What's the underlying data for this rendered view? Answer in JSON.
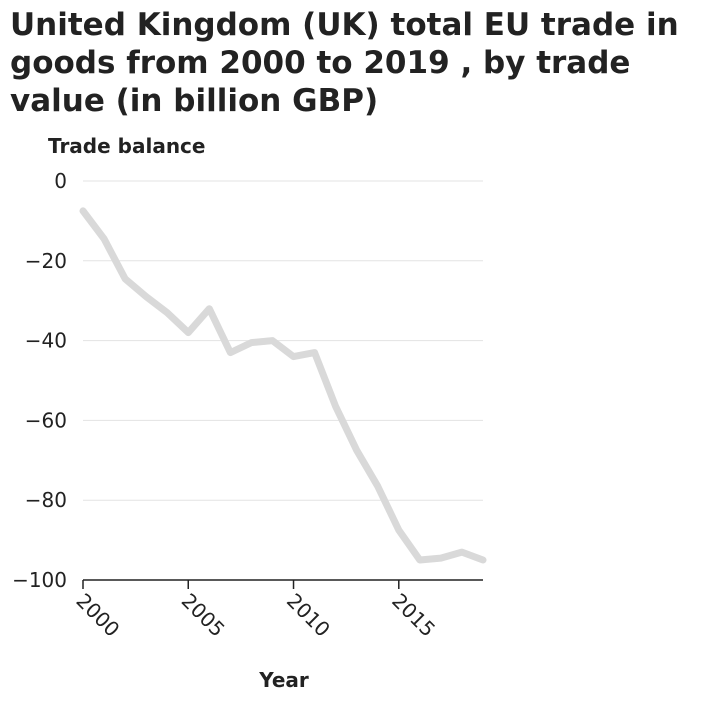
{
  "chart_data": {
    "type": "line",
    "title": "United Kingdom (UK) total EU trade in goods from 2000 to 2019 , by trade value (in billion GBP)",
    "xlabel": "Year",
    "ylabel": "Trade balance",
    "xlim": [
      2000,
      2019
    ],
    "ylim": [
      -100,
      0
    ],
    "xticks": [
      2000,
      2005,
      2010,
      2015
    ],
    "yticks": [
      0,
      -20,
      -40,
      -60,
      -80,
      -100
    ],
    "xtick_labels": [
      "2000",
      "2005",
      "2010",
      "2015"
    ],
    "ytick_labels": [
      "0",
      "−20",
      "−40",
      "−60",
      "−80",
      "−100"
    ],
    "grid": "horizontal",
    "series": [
      {
        "color": "#d9d9d9",
        "x": [
          2000,
          2001,
          2002,
          2003,
          2004,
          2005,
          2006,
          2007,
          2008,
          2009,
          2010,
          2011,
          2012,
          2013,
          2014,
          2015,
          2016,
          2017,
          2018,
          2019
        ],
        "y": [
          -7.5,
          -14.5,
          -24.5,
          -29,
          -33,
          -38,
          -32,
          -43,
          -40.5,
          -40,
          -44,
          -43,
          -56.5,
          -67.5,
          -76.5,
          -87.5,
          -95,
          -94.5,
          -93,
          -95
        ]
      }
    ]
  }
}
